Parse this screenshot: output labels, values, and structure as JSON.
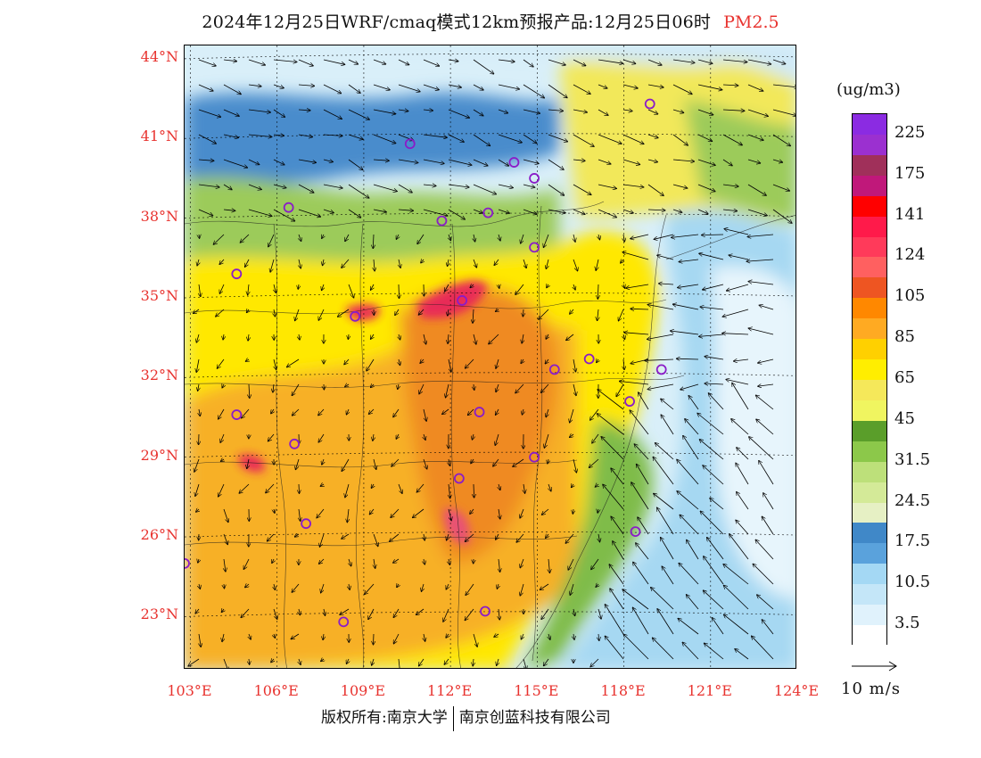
{
  "title": {
    "text": "2024年12月25日WRF/cmaq模式12km预报产品:12月25日06时",
    "variable": "PM2.5"
  },
  "map": {
    "lon_range": [
      102.8,
      124.0
    ],
    "lat_range": [
      21.0,
      44.5
    ],
    "lat_labels": [
      "44°N",
      "41°N",
      "38°N",
      "35°N",
      "32°N",
      "29°N",
      "26°N",
      "23°N"
    ],
    "lon_labels": [
      "103°E",
      "106°E",
      "109°E",
      "112°E",
      "115°E",
      "118°E",
      "121°E",
      "124°E"
    ],
    "stations": [
      [
        118.9,
        42.3
      ],
      [
        110.6,
        40.8
      ],
      [
        114.2,
        40.1
      ],
      [
        114.9,
        39.5
      ],
      [
        106.4,
        38.4
      ],
      [
        111.7,
        37.9
      ],
      [
        113.3,
        38.2
      ],
      [
        114.9,
        36.9
      ],
      [
        104.6,
        35.9
      ],
      [
        112.4,
        34.9
      ],
      [
        108.7,
        34.3
      ],
      [
        115.6,
        32.3
      ],
      [
        116.8,
        32.7
      ],
      [
        119.3,
        32.3
      ],
      [
        104.6,
        30.6
      ],
      [
        113.0,
        30.7
      ],
      [
        118.2,
        31.1
      ],
      [
        106.6,
        29.5
      ],
      [
        112.3,
        28.2
      ],
      [
        114.9,
        29.0
      ],
      [
        107.0,
        26.5
      ],
      [
        118.4,
        26.2
      ],
      [
        102.8,
        25.0
      ],
      [
        108.3,
        22.8
      ],
      [
        113.2,
        23.2
      ]
    ]
  },
  "colorbar": {
    "unit": "(ug/m3)",
    "colors": [
      "#8b2be2",
      "#9b30d0",
      "#a0305a",
      "#c0187a",
      "#ff0000",
      "#ff1a4a",
      "#ff3a5a",
      "#ff6060",
      "#ee5522",
      "#ff8800",
      "#ffaa22",
      "#ffd000",
      "#ffee00",
      "#f5e85a",
      "#f0f560",
      "#5a9e2a",
      "#8cc84a",
      "#bde07a",
      "#d4ea98",
      "#e6f0c4",
      "#4088c8",
      "#5aa2dc",
      "#a4d8f4",
      "#c4e6f8",
      "#e0f2fc",
      "#ffffff"
    ],
    "labels": [
      "225",
      "175",
      "141",
      "124",
      "105",
      "85",
      "65",
      "45",
      "31.5",
      "24.5",
      "17.5",
      "10.5",
      "3.5"
    ]
  },
  "wind_reference": {
    "label": "10 m/s"
  },
  "footer": {
    "left": "版权所有:南京大学",
    "right": "南京创蓝科技有限公司"
  }
}
